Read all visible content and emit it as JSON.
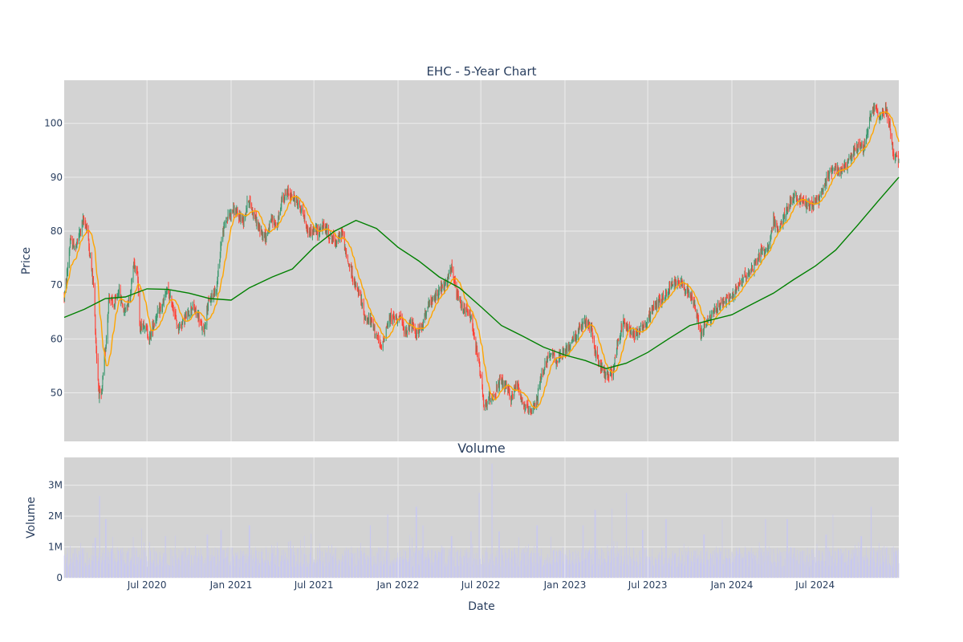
{
  "chart_data": {
    "type": "candlestick",
    "title": "EHC - 5-Year Chart",
    "colors": {
      "increasing": "#3d9970",
      "decreasing": "#ff4136",
      "ma_short": "#ffa500",
      "ma_long": "#008000",
      "volume": "#c8c8f0",
      "panel_bg": "#d3d3d3",
      "grid": "#ececec"
    },
    "price_panel": {
      "ylabel": "Price",
      "ylim": [
        41,
        108
      ],
      "yticks": [
        50,
        60,
        70,
        80,
        90,
        100
      ],
      "xgrid_dates": [
        "2020-07-01",
        "2021-01-01",
        "2021-07-01",
        "2022-01-01",
        "2022-07-01",
        "2023-01-01",
        "2023-07-01",
        "2024-01-01",
        "2024-07-01"
      ],
      "date_range": [
        "2020-01-02",
        "2024-12-31"
      ],
      "price_path": [
        [
          "2020-01-02",
          68
        ],
        [
          "2020-01-06",
          70
        ],
        [
          "2020-01-15",
          78
        ],
        [
          "2020-01-28",
          77
        ],
        [
          "2020-02-12",
          82
        ],
        [
          "2020-02-20",
          81
        ],
        [
          "2020-02-28",
          75
        ],
        [
          "2020-03-06",
          70
        ],
        [
          "2020-03-12",
          58
        ],
        [
          "2020-03-18",
          50
        ],
        [
          "2020-03-23",
          49
        ],
        [
          "2020-04-01",
          58
        ],
        [
          "2020-04-09",
          68
        ],
        [
          "2020-04-20",
          66
        ],
        [
          "2020-04-30",
          69
        ],
        [
          "2020-05-12",
          65
        ],
        [
          "2020-05-25",
          68
        ],
        [
          "2020-06-02",
          74
        ],
        [
          "2020-06-10",
          73
        ],
        [
          "2020-06-15",
          62
        ],
        [
          "2020-06-25",
          63
        ],
        [
          "2020-07-06",
          60
        ],
        [
          "2020-07-20",
          64
        ],
        [
          "2020-08-03",
          66
        ],
        [
          "2020-08-14",
          69
        ],
        [
          "2020-08-27",
          66
        ],
        [
          "2020-09-07",
          62
        ],
        [
          "2020-09-24",
          64
        ],
        [
          "2020-10-08",
          66
        ],
        [
          "2020-10-22",
          64
        ],
        [
          "2020-11-02",
          61
        ],
        [
          "2020-11-10",
          66
        ],
        [
          "2020-11-20",
          68
        ],
        [
          "2020-12-01",
          70
        ],
        [
          "2020-12-10",
          78
        ],
        [
          "2020-12-20",
          82
        ],
        [
          "2021-01-05",
          84
        ],
        [
          "2021-01-15",
          83
        ],
        [
          "2021-01-28",
          82
        ],
        [
          "2021-02-08",
          86
        ],
        [
          "2021-02-20",
          83
        ],
        [
          "2021-03-05",
          80
        ],
        [
          "2021-03-18",
          79
        ],
        [
          "2021-03-30",
          82
        ],
        [
          "2021-04-12",
          81
        ],
        [
          "2021-04-22",
          86
        ],
        [
          "2021-05-05",
          87
        ],
        [
          "2021-05-20",
          86
        ],
        [
          "2021-06-05",
          84
        ],
        [
          "2021-06-17",
          80
        ],
        [
          "2021-06-28",
          80
        ],
        [
          "2021-07-10",
          80
        ],
        [
          "2021-07-22",
          81
        ],
        [
          "2021-08-05",
          79
        ],
        [
          "2021-08-20",
          78
        ],
        [
          "2021-09-01",
          80
        ],
        [
          "2021-09-10",
          75
        ],
        [
          "2021-09-20",
          73
        ],
        [
          "2021-09-28",
          70
        ],
        [
          "2021-10-10",
          68
        ],
        [
          "2021-10-20",
          64
        ],
        [
          "2021-11-05",
          63
        ],
        [
          "2021-11-18",
          60
        ],
        [
          "2021-11-25",
          58
        ],
        [
          "2021-12-06",
          62
        ],
        [
          "2021-12-16",
          64
        ],
        [
          "2022-01-05",
          64
        ],
        [
          "2022-01-17",
          61
        ],
        [
          "2022-01-28",
          63
        ],
        [
          "2022-02-10",
          61
        ],
        [
          "2022-02-22",
          62
        ],
        [
          "2022-03-05",
          66
        ],
        [
          "2022-03-18",
          67
        ],
        [
          "2022-04-01",
          69
        ],
        [
          "2022-04-15",
          70
        ],
        [
          "2022-04-28",
          73
        ],
        [
          "2022-05-10",
          68
        ],
        [
          "2022-05-20",
          66
        ],
        [
          "2022-06-01",
          65
        ],
        [
          "2022-06-10",
          64
        ],
        [
          "2022-06-18",
          59
        ],
        [
          "2022-06-27",
          56
        ],
        [
          "2022-07-08",
          47
        ],
        [
          "2022-07-20",
          49
        ],
        [
          "2022-08-01",
          50
        ],
        [
          "2022-08-12",
          52
        ],
        [
          "2022-08-25",
          51
        ],
        [
          "2022-09-05",
          49
        ],
        [
          "2022-09-19",
          52
        ],
        [
          "2022-09-30",
          48
        ],
        [
          "2022-10-10",
          47
        ],
        [
          "2022-10-20",
          46
        ],
        [
          "2022-11-01",
          49
        ],
        [
          "2022-11-10",
          53
        ],
        [
          "2022-11-21",
          56
        ],
        [
          "2022-12-05",
          57
        ],
        [
          "2022-12-16",
          56
        ],
        [
          "2023-01-05",
          58
        ],
        [
          "2023-01-19",
          60
        ],
        [
          "2023-02-03",
          62
        ],
        [
          "2023-02-15",
          63
        ],
        [
          "2023-02-27",
          62
        ],
        [
          "2023-03-10",
          57
        ],
        [
          "2023-03-20",
          55
        ],
        [
          "2023-04-01",
          53
        ],
        [
          "2023-04-15",
          54
        ],
        [
          "2023-04-26",
          59
        ],
        [
          "2023-05-08",
          63
        ],
        [
          "2023-05-20",
          62
        ],
        [
          "2023-06-01",
          61
        ],
        [
          "2023-06-15",
          62
        ],
        [
          "2023-06-30",
          63
        ],
        [
          "2023-07-12",
          66
        ],
        [
          "2023-07-25",
          67
        ],
        [
          "2023-08-08",
          68
        ],
        [
          "2023-08-21",
          70
        ],
        [
          "2023-09-05",
          71
        ],
        [
          "2023-09-18",
          70
        ],
        [
          "2023-10-02",
          68
        ],
        [
          "2023-10-12",
          66
        ],
        [
          "2023-10-25",
          61
        ],
        [
          "2023-11-05",
          63
        ],
        [
          "2023-11-17",
          64
        ],
        [
          "2023-12-01",
          66
        ],
        [
          "2023-12-15",
          67
        ],
        [
          "2024-01-05",
          68
        ],
        [
          "2024-01-20",
          71
        ],
        [
          "2024-02-05",
          72
        ],
        [
          "2024-02-20",
          74
        ],
        [
          "2024-03-05",
          76
        ],
        [
          "2024-03-20",
          77
        ],
        [
          "2024-04-01",
          82
        ],
        [
          "2024-04-12",
          80
        ],
        [
          "2024-04-26",
          83
        ],
        [
          "2024-05-10",
          86
        ],
        [
          "2024-05-25",
          86
        ],
        [
          "2024-06-10",
          85
        ],
        [
          "2024-06-25",
          85
        ],
        [
          "2024-07-10",
          86
        ],
        [
          "2024-07-20",
          88
        ],
        [
          "2024-08-01",
          91
        ],
        [
          "2024-08-15",
          92
        ],
        [
          "2024-08-30",
          91
        ],
        [
          "2024-09-12",
          93
        ],
        [
          "2024-09-25",
          95
        ],
        [
          "2024-10-05",
          96
        ],
        [
          "2024-10-15",
          95
        ],
        [
          "2024-10-28",
          101
        ],
        [
          "2024-11-08",
          103
        ],
        [
          "2024-11-20",
          101
        ],
        [
          "2024-12-02",
          103
        ],
        [
          "2024-12-10",
          100
        ],
        [
          "2024-12-20",
          94
        ],
        [
          "2024-12-31",
          93
        ]
      ],
      "ma_long_path": [
        [
          "2020-01-02",
          64
        ],
        [
          "2020-02-15",
          65.5
        ],
        [
          "2020-04-01",
          67.5
        ],
        [
          "2020-05-15",
          67.8
        ],
        [
          "2020-07-01",
          69.3
        ],
        [
          "2020-08-15",
          69.2
        ],
        [
          "2020-10-01",
          68.5
        ],
        [
          "2020-11-15",
          67.5
        ],
        [
          "2021-01-01",
          67.2
        ],
        [
          "2021-02-10",
          69.5
        ],
        [
          "2021-04-01",
          71.5
        ],
        [
          "2021-05-15",
          73
        ],
        [
          "2021-07-01",
          77
        ],
        [
          "2021-08-15",
          80
        ],
        [
          "2021-10-01",
          82
        ],
        [
          "2021-11-15",
          80.5
        ],
        [
          "2022-01-01",
          77
        ],
        [
          "2022-02-15",
          74.5
        ],
        [
          "2022-04-01",
          71.5
        ],
        [
          "2022-05-15",
          69.5
        ],
        [
          "2022-07-01",
          66
        ],
        [
          "2022-08-15",
          62.5
        ],
        [
          "2022-10-01",
          60.5
        ],
        [
          "2022-11-15",
          58.5
        ],
        [
          "2023-01-01",
          57
        ],
        [
          "2023-02-15",
          56
        ],
        [
          "2023-04-01",
          54.5
        ],
        [
          "2023-05-15",
          55.5
        ],
        [
          "2023-07-01",
          57.5
        ],
        [
          "2023-08-15",
          60
        ],
        [
          "2023-10-01",
          62.5
        ],
        [
          "2023-11-15",
          63.5
        ],
        [
          "2024-01-01",
          64.5
        ],
        [
          "2024-02-15",
          66.5
        ],
        [
          "2024-04-01",
          68.5
        ],
        [
          "2024-05-15",
          71
        ],
        [
          "2024-07-01",
          73.5
        ],
        [
          "2024-08-15",
          76.5
        ],
        [
          "2024-10-01",
          81
        ],
        [
          "2024-11-15",
          85.5
        ],
        [
          "2024-12-31",
          90
        ]
      ]
    },
    "volume_panel": {
      "title": "Volume",
      "ylabel": "Volume",
      "xlabel": "Date",
      "ylim": [
        0,
        3900000
      ],
      "yticks": [
        {
          "value": 0,
          "label": "0"
        },
        {
          "value": 1000000,
          "label": "1M"
        },
        {
          "value": 2000000,
          "label": "2M"
        },
        {
          "value": 3000000,
          "label": "3M"
        }
      ],
      "xticks": [
        {
          "date": "2020-07-01",
          "label": "Jul 2020"
        },
        {
          "date": "2021-01-01",
          "label": "Jan 2021"
        },
        {
          "date": "2021-07-01",
          "label": "Jul 2021"
        },
        {
          "date": "2022-01-01",
          "label": "Jan 2022"
        },
        {
          "date": "2022-07-01",
          "label": "Jul 2022"
        },
        {
          "date": "2023-01-01",
          "label": "Jan 2023"
        },
        {
          "date": "2023-07-01",
          "label": "Jul 2023"
        },
        {
          "date": "2024-01-01",
          "label": "Jan 2024"
        },
        {
          "date": "2024-07-01",
          "label": "Jul 2024"
        }
      ],
      "spikes": [
        [
          "2020-03-10",
          1300000
        ],
        [
          "2020-03-20",
          2650000
        ],
        [
          "2020-04-02",
          1900000
        ],
        [
          "2020-06-20",
          1600000
        ],
        [
          "2020-08-10",
          1350000
        ],
        [
          "2020-11-10",
          1400000
        ],
        [
          "2020-12-10",
          1550000
        ],
        [
          "2021-02-10",
          1700000
        ],
        [
          "2021-05-10",
          1200000
        ],
        [
          "2021-11-01",
          1700000
        ],
        [
          "2021-12-10",
          2050000
        ],
        [
          "2022-02-10",
          2300000
        ],
        [
          "2022-02-25",
          1700000
        ],
        [
          "2022-04-28",
          1350000
        ],
        [
          "2022-06-10",
          1500000
        ],
        [
          "2022-06-27",
          2750000
        ],
        [
          "2022-07-25",
          3700000
        ],
        [
          "2022-08-10",
          1500000
        ],
        [
          "2022-11-01",
          1700000
        ],
        [
          "2023-02-10",
          1700000
        ],
        [
          "2023-03-08",
          2200000
        ],
        [
          "2023-04-15",
          2250000
        ],
        [
          "2023-05-15",
          2750000
        ],
        [
          "2023-06-20",
          1550000
        ],
        [
          "2023-08-10",
          1900000
        ],
        [
          "2023-11-01",
          1400000
        ],
        [
          "2023-12-10",
          1900000
        ],
        [
          "2024-03-15",
          1900000
        ],
        [
          "2024-05-01",
          1900000
        ],
        [
          "2024-07-25",
          1400000
        ],
        [
          "2024-08-10",
          2050000
        ],
        [
          "2024-10-10",
          1350000
        ],
        [
          "2024-11-01",
          2300000
        ]
      ]
    }
  }
}
